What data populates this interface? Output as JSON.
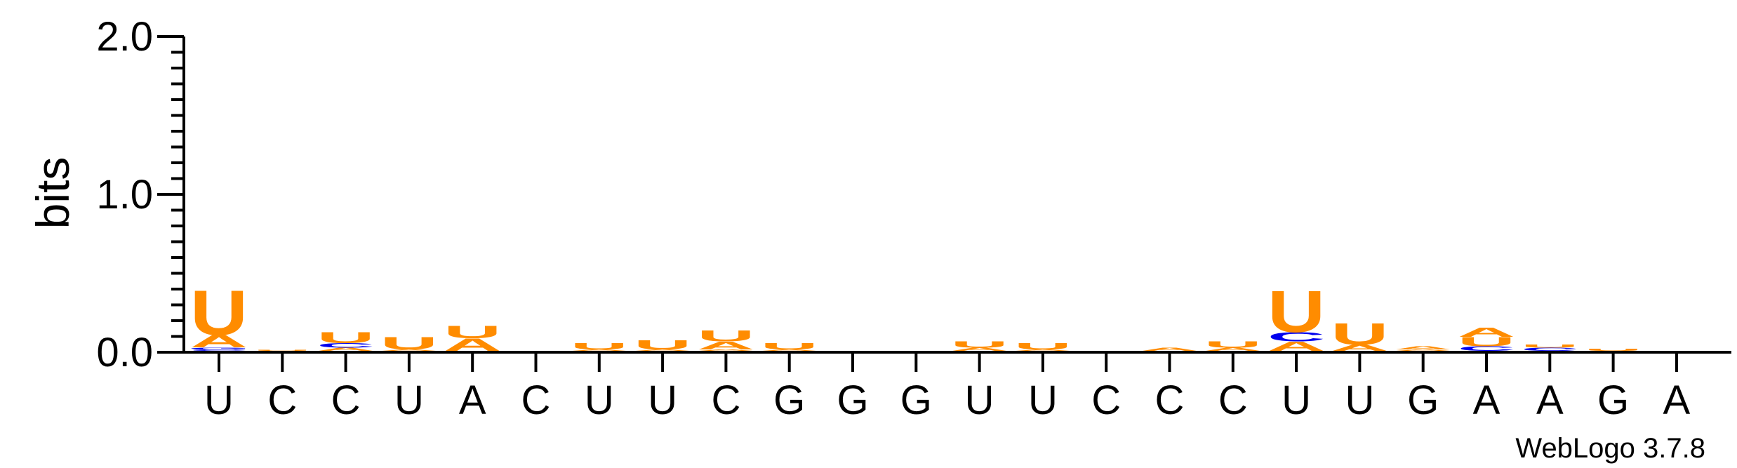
{
  "chart_data": {
    "type": "sequence-logo",
    "ylabel": "bits",
    "ylim": [
      0,
      2.0
    ],
    "yticks": [
      "0.0",
      "1.0",
      "2.0"
    ],
    "x_labels": [
      "U",
      "C",
      "C",
      "U",
      "A",
      "C",
      "U",
      "U",
      "C",
      "G",
      "G",
      "G",
      "U",
      "U",
      "C",
      "C",
      "C",
      "U",
      "U",
      "G",
      "A",
      "A",
      "G",
      "A"
    ],
    "colors": {
      "U": "#ff8c00",
      "A": "#ff8c00",
      "C": "#0000ee",
      "G": "#0000ee"
    },
    "columns": [
      [
        {
          "l": "C",
          "h": 0.01
        },
        {
          "l": "G",
          "h": 0.012
        },
        {
          "l": "A",
          "h": 0.08
        },
        {
          "l": "U",
          "h": 0.29
        }
      ],
      [
        {
          "l": "U",
          "h": 0.004
        }
      ],
      [
        {
          "l": "A",
          "h": 0.02
        },
        {
          "l": "C",
          "h": 0.03
        },
        {
          "l": "U",
          "h": 0.07
        }
      ],
      [
        {
          "l": "A",
          "h": 0.01
        },
        {
          "l": "U",
          "h": 0.08
        }
      ],
      [
        {
          "l": "A",
          "h": 0.08
        },
        {
          "l": "U",
          "h": 0.08
        }
      ],
      [],
      [
        {
          "l": "A",
          "h": 0.01
        },
        {
          "l": "U",
          "h": 0.04
        }
      ],
      [
        {
          "l": "A",
          "h": 0.01
        },
        {
          "l": "U",
          "h": 0.06
        }
      ],
      [
        {
          "l": "A",
          "h": 0.01
        },
        {
          "l": "A",
          "h": 0.05
        },
        {
          "l": "U",
          "h": 0.07
        }
      ],
      [
        {
          "l": "A",
          "h": 0.01
        },
        {
          "l": "U",
          "h": 0.04
        }
      ],
      [],
      [],
      [
        {
          "l": "A",
          "h": 0.02
        },
        {
          "l": "U",
          "h": 0.04
        }
      ],
      [
        {
          "l": "A",
          "h": 0.01
        },
        {
          "l": "U",
          "h": 0.04
        }
      ],
      [],
      [
        {
          "l": "A",
          "h": 0.02
        }
      ],
      [
        {
          "l": "A",
          "h": 0.02
        },
        {
          "l": "U",
          "h": 0.04
        }
      ],
      [
        {
          "l": "A",
          "h": 0.06
        },
        {
          "l": "C",
          "h": 0.06
        },
        {
          "l": "U",
          "h": 0.27
        }
      ],
      [
        {
          "l": "A",
          "h": 0.04
        },
        {
          "l": "U",
          "h": 0.14
        }
      ],
      [
        {
          "l": "A",
          "h": 0.01
        },
        {
          "l": "A",
          "h": 0.02
        }
      ],
      [
        {
          "l": "C",
          "h": 0.03
        },
        {
          "l": "U",
          "h": 0.06
        },
        {
          "l": "A",
          "h": 0.06
        }
      ],
      [
        {
          "l": "C",
          "h": 0.02
        },
        {
          "l": "U",
          "h": 0.02
        }
      ],
      [
        {
          "l": "U",
          "h": 0.015
        }
      ],
      []
    ]
  },
  "footer": {
    "version_label": "WebLogo 3.7.8"
  }
}
